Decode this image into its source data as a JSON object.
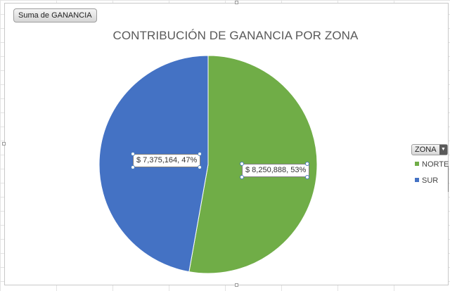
{
  "field_button": "Suma de GANANCIA",
  "chart_data": {
    "type": "pie",
    "title": "CONTRIBUCIÓN DE GANANCIA POR ZONA",
    "slices": [
      {
        "name": "NORTE",
        "value": 8250888,
        "percent": 53,
        "color": "#70ad47",
        "label": "$ 8,250,888, 53%"
      },
      {
        "name": "SUR",
        "value": 7375164,
        "percent": 47,
        "color": "#4472c4",
        "label": "$ 7,375,164, 47%"
      }
    ],
    "legend": {
      "title": "ZONA",
      "placement": "right",
      "items": [
        "NORTE",
        "SUR"
      ]
    }
  }
}
